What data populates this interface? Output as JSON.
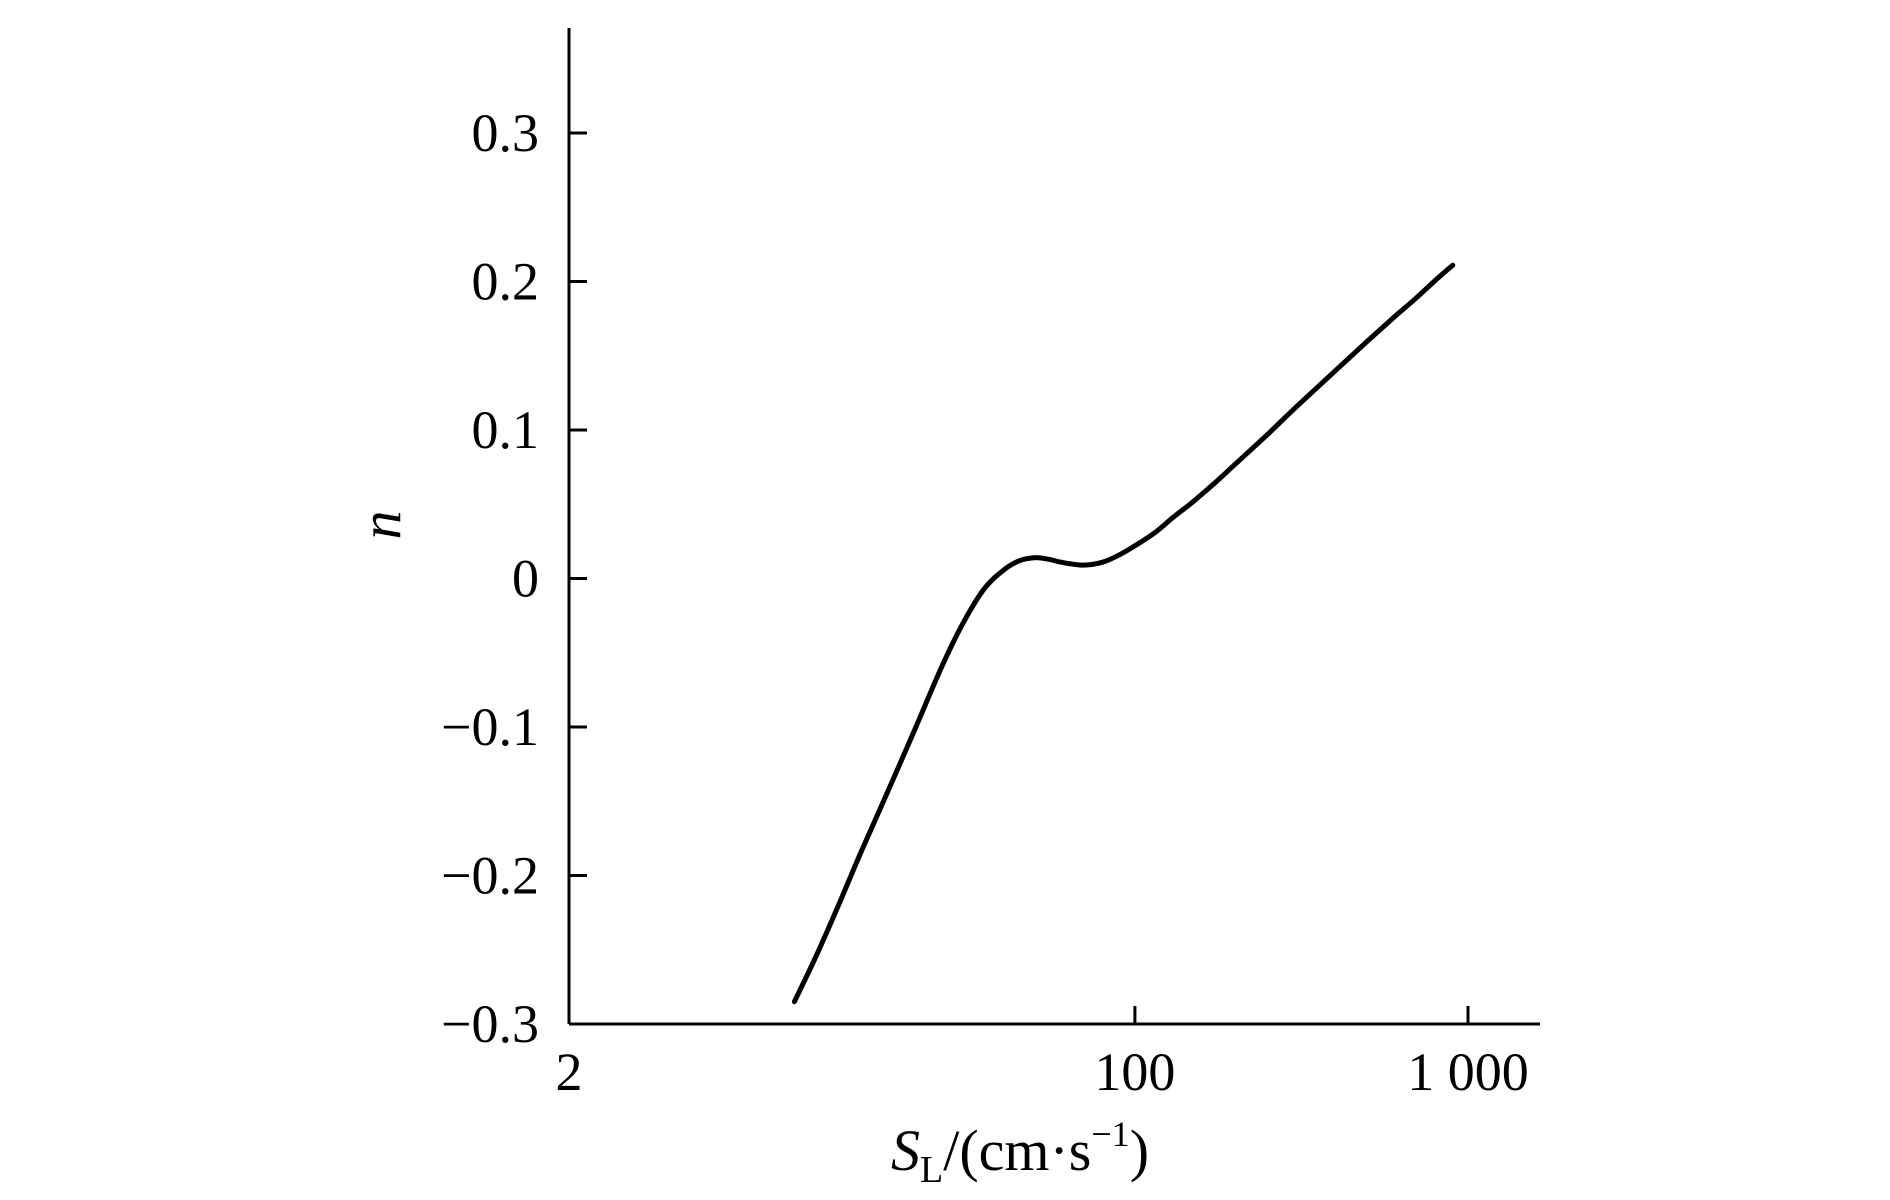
{
  "chart_data": {
    "type": "line",
    "title": "",
    "xlabel": {
      "symbol": "S",
      "subscript": "L",
      "unit_open": "/(cm·s",
      "unit_exp": "−1",
      "unit_close": ")"
    },
    "ylabel": "n",
    "xscale": "log",
    "xlim": [
      2,
      1500
    ],
    "ylim": [
      -0.3,
      0.36
    ],
    "xticks": [
      {
        "value": 2,
        "label": "2"
      },
      {
        "value": 100,
        "label": "100"
      },
      {
        "value": 1000,
        "label": "1 000"
      }
    ],
    "yticks": [
      {
        "value": -0.3,
        "label": "−0.3"
      },
      {
        "value": -0.2,
        "label": "−0.2"
      },
      {
        "value": -0.1,
        "label": "−0.1"
      },
      {
        "value": 0,
        "label": "0"
      },
      {
        "value": 0.1,
        "label": "0.1"
      },
      {
        "value": 0.2,
        "label": "0.2"
      },
      {
        "value": 0.3,
        "label": "0.3"
      }
    ],
    "grid": false,
    "legend": "none",
    "color": "#000000",
    "series": [
      {
        "x": [
          9.5,
          11,
          13,
          15,
          18,
          22,
          26,
          30,
          35,
          40,
          45,
          50,
          55,
          60,
          70,
          80,
          90,
          100,
          115,
          130,
          150,
          175,
          200,
          250,
          300,
          400,
          500,
          600,
          700,
          800,
          900
        ],
        "y": [
          -0.285,
          -0.255,
          -0.218,
          -0.185,
          -0.145,
          -0.1,
          -0.062,
          -0.033,
          -0.008,
          0.005,
          0.012,
          0.014,
          0.013,
          0.011,
          0.009,
          0.011,
          0.016,
          0.022,
          0.031,
          0.041,
          0.052,
          0.065,
          0.077,
          0.097,
          0.114,
          0.14,
          0.16,
          0.176,
          0.189,
          0.201,
          0.211
        ]
      }
    ]
  }
}
